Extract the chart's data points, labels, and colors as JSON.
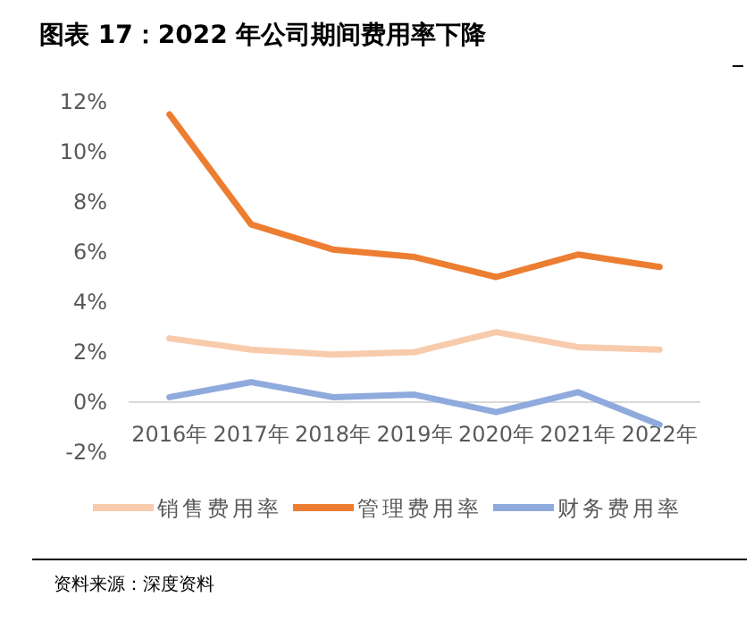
{
  "chart_data": {
    "type": "line",
    "title": "图表 17：2022 年公司期间费用率下降",
    "categories": [
      "2016年",
      "2017年",
      "2018年",
      "2019年",
      "2020年",
      "2021年",
      "2022年"
    ],
    "series": [
      {
        "name": "销售费用率",
        "color": "#f8cbad",
        "values": [
          2.55,
          2.1,
          1.9,
          2.0,
          2.8,
          2.2,
          2.1
        ]
      },
      {
        "name": "管理费用率",
        "color": "#ed7d31",
        "values": [
          11.5,
          7.1,
          6.1,
          5.8,
          5.0,
          5.9,
          5.4
        ]
      },
      {
        "name": "财务费用率",
        "color": "#8faadc",
        "values": [
          0.2,
          0.8,
          0.2,
          0.3,
          -0.4,
          0.4,
          -0.9
        ]
      }
    ],
    "ylim": [
      -2,
      12
    ],
    "yticks": [
      {
        "value": -2,
        "label": "-2%"
      },
      {
        "value": 0,
        "label": "0%"
      },
      {
        "value": 2,
        "label": "2%"
      },
      {
        "value": 4,
        "label": "4%"
      },
      {
        "value": 6,
        "label": "6%"
      },
      {
        "value": 8,
        "label": "8%"
      },
      {
        "value": 10,
        "label": "10%"
      },
      {
        "value": 12,
        "label": "12%"
      }
    ],
    "grid": false,
    "legend": "bottom",
    "marker": "none",
    "line_style": "solid",
    "annotations": [
      "资料来源：深度资料"
    ]
  }
}
